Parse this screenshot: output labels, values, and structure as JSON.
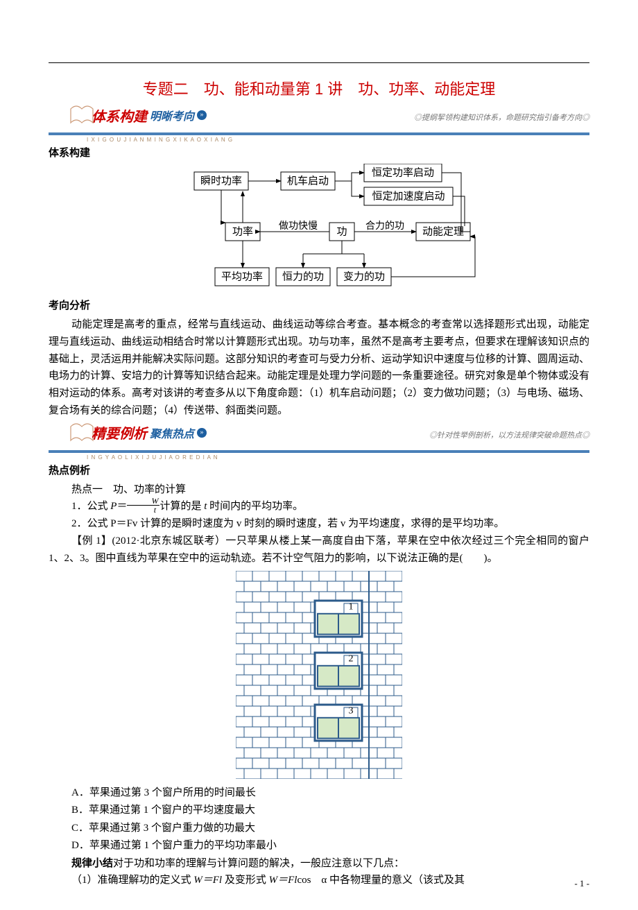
{
  "title": "专题二　功、能和动量第 1 讲　功、功率、动能定理",
  "banner1": {
    "script": "体系构建",
    "sub": "明晰考向",
    "right": "◎提纲挈领构建知识体系，命题研究指引备考方向◎",
    "pinyin": "I X I G O U J I A N M I N G X I K A O X I A N G"
  },
  "section1_h": "体系构建",
  "diagram": {
    "font": 15,
    "box_stroke": "#000",
    "box_fill": "#fff",
    "nodes": {
      "n1": "瞬时功率",
      "n2": "机车启动",
      "n3": "恒定功率启动",
      "n4": "恒定加速度启动",
      "n5": "功率",
      "n6": "做功快慢",
      "n7": "功",
      "n8": "合力的功",
      "n9": "动能定理",
      "n10": "平均功率",
      "n11": "恒力的功",
      "n12": "变力的功"
    }
  },
  "section2_h": "考向分析",
  "para1": "动能定理是高考的重点，经常与直线运动、曲线运动等综合考查。基本概念的考查常以选择题形式出现，动能定理与直线运动、曲线运动相结合时常以计算题形式出现。功与功率，虽然不是高考主要考点，但要求在理解该知识点的基础上，灵活运用并能解决实际问题。这部分知识的考查可与受力分析、运动学知识中速度与位移的计算、圆周运动、电场力的计算、安培力的计算等知识结合起来。动能定理是处理力学问题的一条重要途径。研究对象是单个物体或没有相对运动的体系。高考对该讲的考查多从以下角度命题：（1）机车启动问题；（2）变力做功问题；（3）与电场、磁场、复合场有关的综合问题；（4）传送带、斜面类问题。",
  "banner2": {
    "script": "精要例析",
    "sub": "聚焦热点",
    "right": "◎针对性举例剖析，以方法规律突破命题热点◎",
    "pinyin": "I N G Y A O L I X I J U J I A O R E D I A N"
  },
  "section3_h": "热点例析",
  "hot_h": "热点一　功、功率的计算",
  "line1a": "1．公式 ",
  "line1b": "＝",
  "line1c": "计算的是 ",
  "line1d": " 时间内的平均功率。",
  "line2": "2．公式 P＝Fv 计算的是瞬时速度为 v 时刻的瞬时速度，若 v 为平均速度，求得的是平均功率。",
  "example_h": "【例 1】(2012·北京东城区联考）一只苹果从楼上某一高度自由下落，苹果在空中依次经过三个完全相同的窗户 1、2、3。图中直线为苹果在空中的运动轨迹。若不计空气阻力的影响，以下说法正确的是(　　)。",
  "building": {
    "brick_fill": "#ffffff",
    "brick_stroke": "#2b5a8a",
    "window_fill": "#d6e9c6",
    "window_border": "#2b5a8a",
    "rows": 20,
    "cols": 10,
    "windows": [
      {
        "label": "1",
        "row": 3
      },
      {
        "label": "2",
        "row": 8
      },
      {
        "label": "3",
        "row": 13
      }
    ]
  },
  "options": {
    "A": "A．苹果通过第 3 个窗户所用的时间最长",
    "B": "B．苹果通过第 1 个窗户的平均速度最大",
    "C": "C．苹果通过第 3 个窗户重力做的功最大",
    "D": "D．苹果通过第 1 个窗户重力的平均功率最小"
  },
  "rule_h": "规律小结",
  "rule_body": "对于功和功率的理解与计算问题的解决，一般应注意以下几点：",
  "rule_1a": "（1）准确理解功的定义式 ",
  "rule_1b": "W＝Fl",
  "rule_1c": " 及变形式 ",
  "rule_1d": "W＝Fl",
  "rule_1e": "cos　α 中各物理量的意义（该式及其",
  "page_num": "- 1 -"
}
